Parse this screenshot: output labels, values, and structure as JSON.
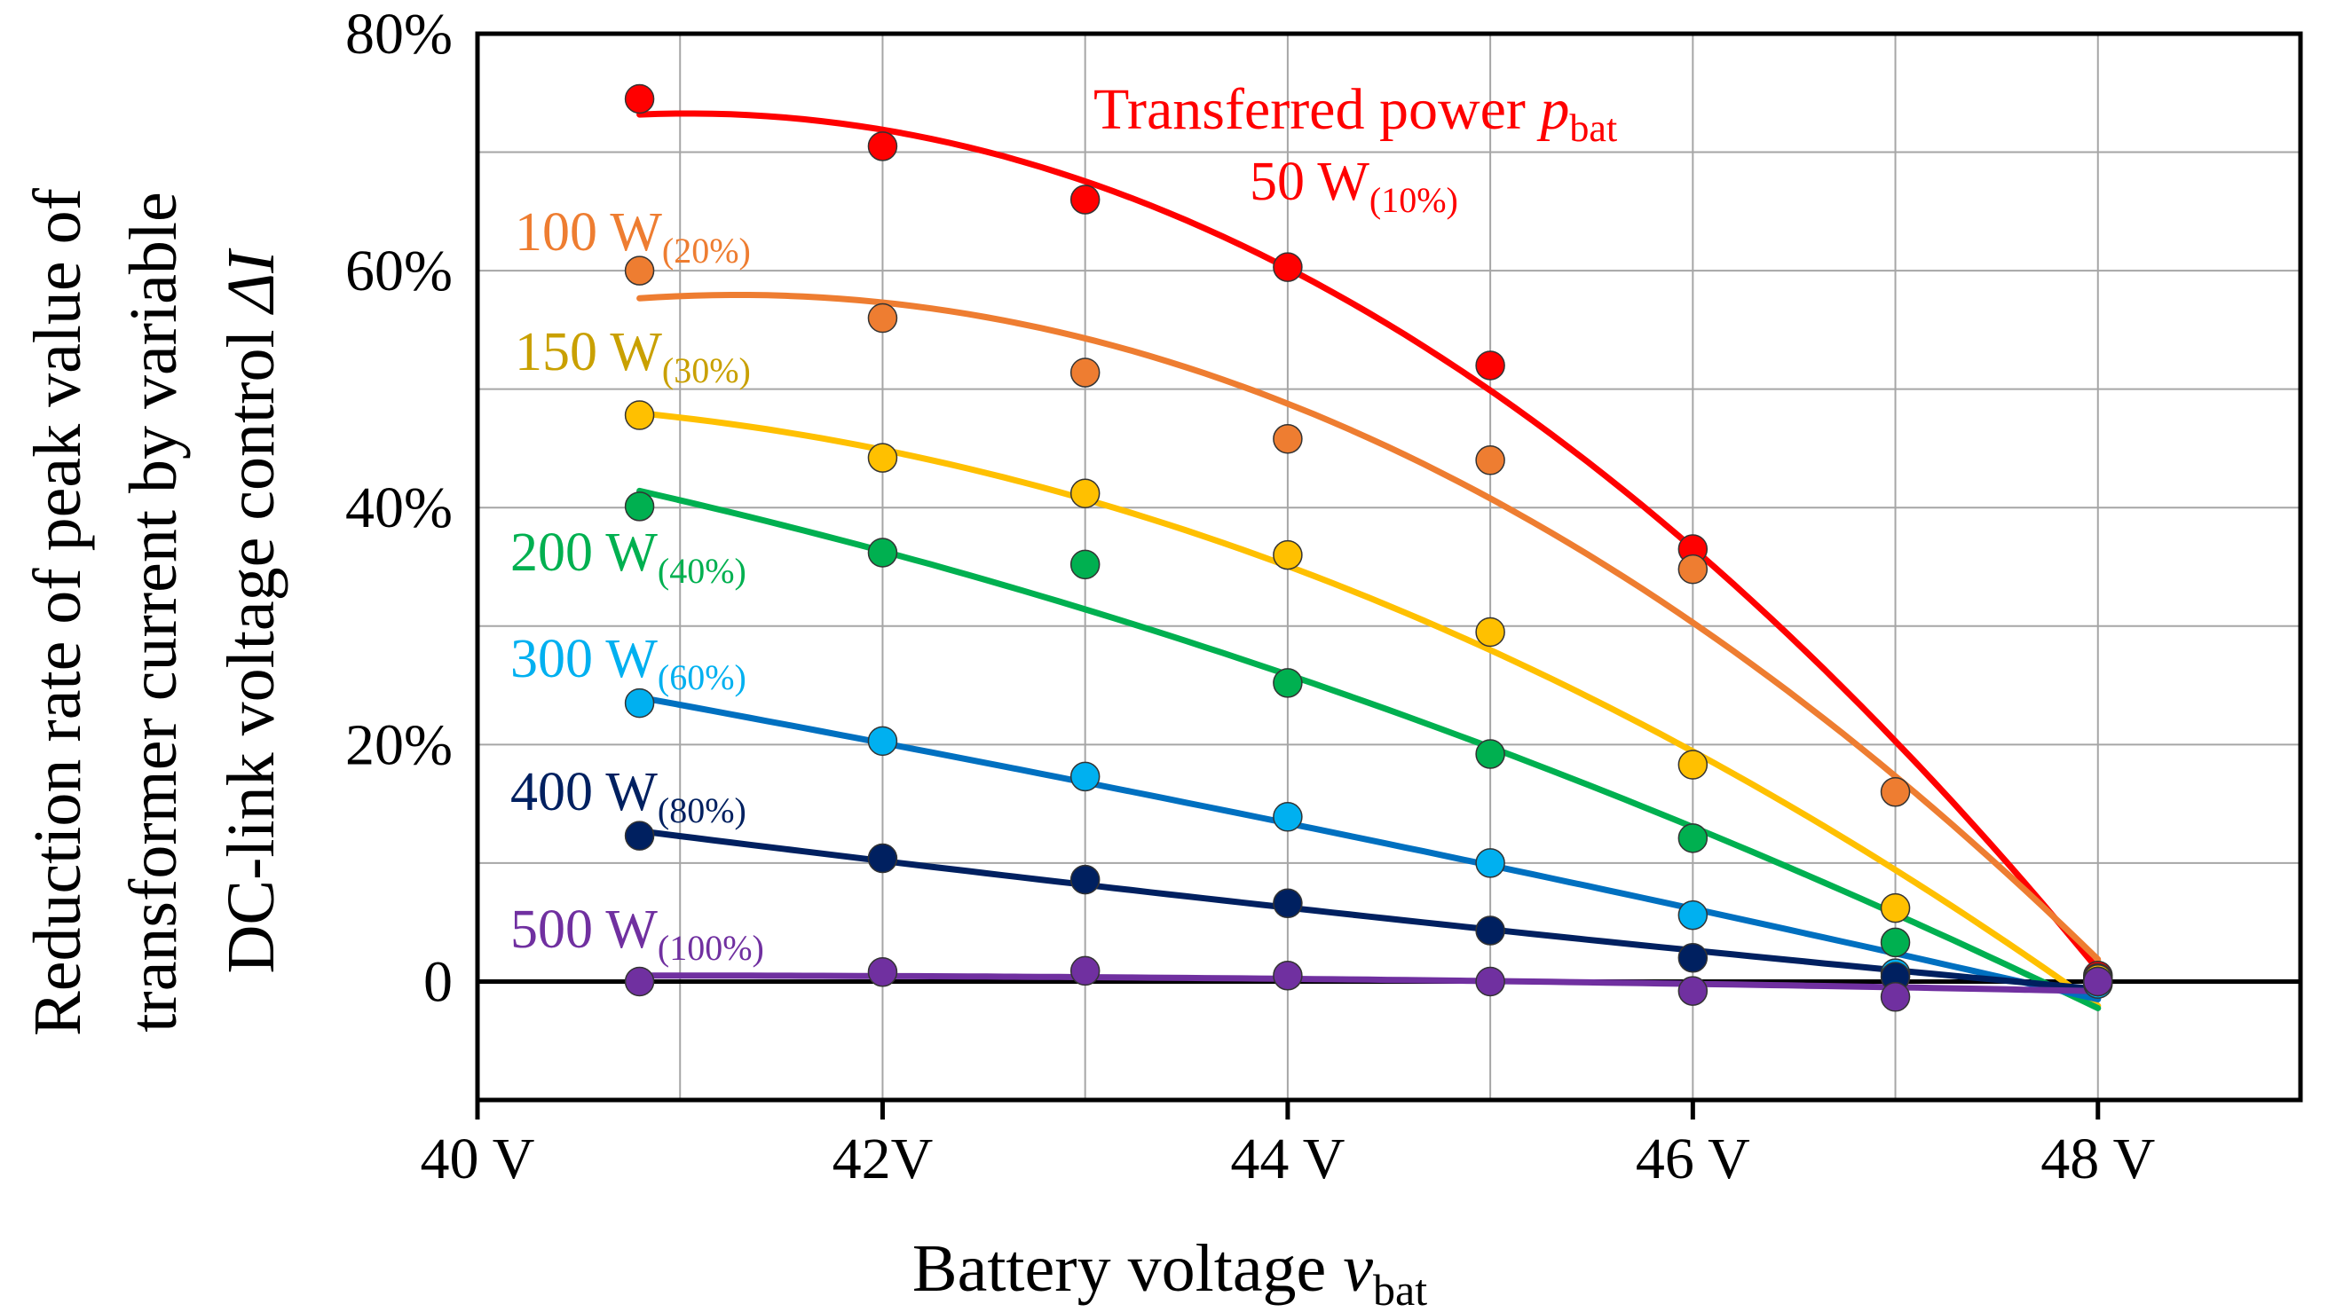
{
  "chart_data": {
    "type": "scatter",
    "title": "",
    "xlabel": {
      "main": "Battery voltage ",
      "italic": "v",
      "subscript": "bat"
    },
    "ylabel": {
      "lines": [
        "Reduction rate of peak value of",
        "transformer current by variable",
        "DC-link voltage control "
      ],
      "italic_suffix": "ΔI"
    },
    "xlim": [
      40,
      49
    ],
    "ylim": [
      -10,
      80
    ],
    "x_ticks": [
      {
        "value": 40,
        "label": "40 V"
      },
      {
        "value": 42,
        "label": "42V"
      },
      {
        "value": 44,
        "label": "44 V"
      },
      {
        "value": 46,
        "label": "46 V"
      },
      {
        "value": 48,
        "label": "48 V"
      }
    ],
    "y_ticks": [
      {
        "value": 0,
        "label": "0"
      },
      {
        "value": 20,
        "label": "20%"
      },
      {
        "value": 40,
        "label": "40%"
      },
      {
        "value": 60,
        "label": "60%"
      },
      {
        "value": 80,
        "label": "80%"
      }
    ],
    "grid": true,
    "x_grid_step": 1,
    "y_grid_step": 10,
    "legend_heading": {
      "text": "Transferred power ",
      "italic": "p",
      "subscript": "bat"
    },
    "x": [
      40.8,
      42,
      43,
      44,
      45,
      46,
      47,
      48
    ],
    "series": [
      {
        "name": "50 W",
        "sub": "(10%)",
        "color": "#ff0000",
        "values": [
          74.5,
          70.5,
          66.0,
          60.3,
          52.0,
          36.5,
          null,
          0.5
        ],
        "fit_coeffs": [
          -1.45,
          71.0,
          -793.7,
          40.75,
          48.0
        ]
      },
      {
        "name": "100 W",
        "sub": "(20%)",
        "color": "#ee7d31",
        "values": [
          60.0,
          56.0,
          51.4,
          45.8,
          44.0,
          34.8,
          16.0,
          0.3
        ],
        "fit_coeffs": [
          -1.1,
          58.5,
          -652.1,
          40.8,
          48.0
        ]
      },
      {
        "name": "150 W",
        "sub": "(30%)",
        "color": "#ffc000",
        "values": [
          47.8,
          44.2,
          41.2,
          36.0,
          29.5,
          18.3,
          6.2,
          0.2
        ],
        "fit_coeffs": [
          -0.78,
          48.3,
          -494.5,
          40.8,
          48.0
        ]
      },
      {
        "name": "200 W",
        "sub": "(40%)",
        "color": "#00b050",
        "values": [
          40.1,
          36.2,
          35.2,
          25.2,
          19.2,
          12.1,
          3.3,
          0.0
        ],
        "fit_coeffs": [
          -0.25,
          29.4,
          -772.5,
          40.8,
          48.0
        ]
      },
      {
        "name": "300 W",
        "sub": "(60%)",
        "color": "#00b0f0",
        "line_color": "#0070c0",
        "values": [
          23.5,
          20.3,
          17.3,
          13.9,
          10.0,
          5.6,
          0.7,
          -0.2
        ],
        "fit_coeffs": [
          0.3,
          -137.0,
          15430.0,
          40.8,
          48.0
        ]
      },
      {
        "name": "400 W",
        "sub": "(80%)",
        "color": "#002060",
        "values": [
          12.3,
          10.4,
          8.6,
          6.6,
          4.3,
          2.0,
          0.4,
          0.0
        ],
        "fit_coeffs": [
          0.05,
          -80.2,
          3880.0,
          40.8,
          48.0
        ]
      },
      {
        "name": "500 W",
        "sub": "(100%)",
        "color": "#7030a0",
        "values": [
          0.0,
          0.8,
          0.9,
          0.5,
          0.0,
          -0.8,
          -1.3,
          0.0
        ],
        "fit_coeffs": [
          -0.05,
          4.23,
          -89.1,
          40.8,
          48.0
        ]
      }
    ]
  }
}
